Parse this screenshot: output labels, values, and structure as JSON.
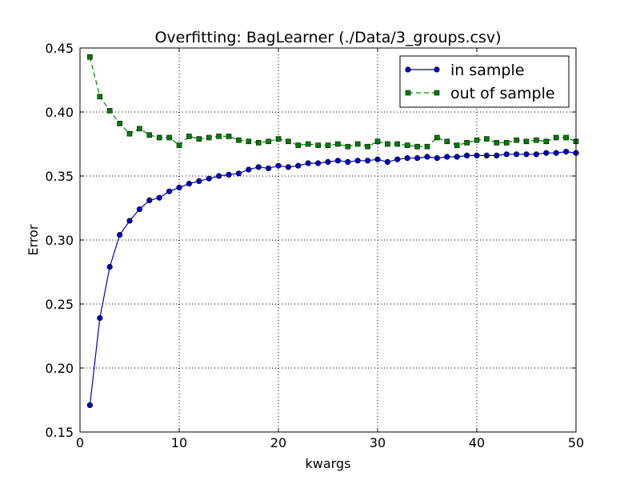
{
  "chart_data": {
    "type": "line",
    "title": "Overfitting: BagLearner (./Data/3_groups.csv)",
    "xlabel": "kwargs",
    "ylabel": "Error",
    "xlim": [
      0,
      50
    ],
    "ylim": [
      0.15,
      0.45
    ],
    "x_ticks": [
      "0",
      "10",
      "20",
      "30",
      "40",
      "50"
    ],
    "y_ticks": [
      "0.15",
      "0.20",
      "0.25",
      "0.30",
      "0.35",
      "0.40",
      "0.45"
    ],
    "grid": true,
    "legend_position": "top-right",
    "x": [
      1,
      2,
      3,
      4,
      5,
      6,
      7,
      8,
      9,
      10,
      11,
      12,
      13,
      14,
      15,
      16,
      17,
      18,
      19,
      20,
      21,
      22,
      23,
      24,
      25,
      26,
      27,
      28,
      29,
      30,
      31,
      32,
      33,
      34,
      35,
      36,
      37,
      38,
      39,
      40,
      41,
      42,
      43,
      44,
      45,
      46,
      47,
      48,
      49,
      50
    ],
    "series": [
      {
        "name": "in sample",
        "color": "#0000bf",
        "marker": "circle",
        "line_style": "solid",
        "values": [
          0.171,
          0.239,
          0.279,
          0.304,
          0.315,
          0.324,
          0.331,
          0.333,
          0.338,
          0.341,
          0.344,
          0.346,
          0.348,
          0.35,
          0.351,
          0.352,
          0.355,
          0.357,
          0.356,
          0.358,
          0.357,
          0.358,
          0.36,
          0.36,
          0.361,
          0.362,
          0.361,
          0.362,
          0.362,
          0.363,
          0.361,
          0.363,
          0.364,
          0.364,
          0.365,
          0.364,
          0.365,
          0.365,
          0.366,
          0.366,
          0.366,
          0.366,
          0.367,
          0.367,
          0.367,
          0.367,
          0.368,
          0.368,
          0.369,
          0.368
        ]
      },
      {
        "name": "out of sample",
        "color": "#007f00",
        "marker": "square",
        "line_style": "dashed",
        "values": [
          0.443,
          0.412,
          0.401,
          0.391,
          0.383,
          0.387,
          0.382,
          0.38,
          0.38,
          0.374,
          0.381,
          0.379,
          0.38,
          0.381,
          0.381,
          0.378,
          0.377,
          0.376,
          0.377,
          0.379,
          0.377,
          0.374,
          0.375,
          0.374,
          0.374,
          0.375,
          0.373,
          0.375,
          0.373,
          0.377,
          0.375,
          0.375,
          0.374,
          0.373,
          0.373,
          0.38,
          0.377,
          0.374,
          0.376,
          0.378,
          0.379,
          0.376,
          0.376,
          0.378,
          0.377,
          0.378,
          0.377,
          0.38,
          0.38,
          0.377
        ]
      }
    ]
  }
}
